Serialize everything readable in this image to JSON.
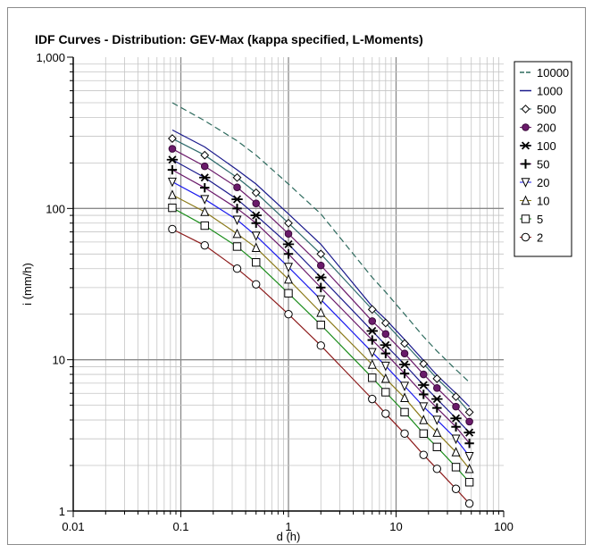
{
  "chart_data": {
    "type": "line",
    "title": "IDF Curves - Distribution: GEV-Max (kappa specified, L-Moments)",
    "xlabel": "d (h)",
    "ylabel": "i (mm/h)",
    "xscale": "log",
    "yscale": "log",
    "xlim": [
      0.01,
      100
    ],
    "ylim": [
      1,
      1000
    ],
    "x_tick_labels": [
      "0.01",
      "0.1",
      "1",
      "10",
      "100"
    ],
    "y_tick_labels": [
      "1",
      "10",
      "100",
      "1,000"
    ],
    "grid": true,
    "legend_position": "right",
    "x": [
      0.0833,
      0.1667,
      0.3333,
      0.5,
      1,
      2,
      6,
      8,
      12,
      18,
      24,
      36,
      48
    ],
    "series": [
      {
        "name": "10000",
        "color": "#2e6b5e",
        "marker": "none",
        "dashed": true,
        "values": [
          500,
          380,
          280,
          225,
          145,
          92,
          35,
          28,
          20,
          14.2,
          11.4,
          8.6,
          7.1
        ]
      },
      {
        "name": "1000",
        "color": "#1a1a8c",
        "marker": "none",
        "dashed": false,
        "values": [
          330,
          255,
          180,
          145,
          92,
          58,
          22.5,
          18.5,
          13.6,
          9.9,
          7.9,
          6.0,
          4.9
        ]
      },
      {
        "name": "500",
        "color": "#2e6b6b",
        "marker": "diamond",
        "dashed": false,
        "values": [
          290,
          225,
          160,
          127,
          80,
          50,
          21.5,
          17.5,
          12.8,
          9.4,
          7.5,
          5.7,
          4.5
        ]
      },
      {
        "name": "200",
        "color": "#6a1a6a",
        "marker": "dot",
        "dashed": false,
        "values": [
          248,
          190,
          138,
          108,
          68,
          42,
          18,
          14.8,
          11,
          8,
          6.5,
          4.9,
          3.9
        ]
      },
      {
        "name": "100",
        "color": "#1a1a8c",
        "marker": "asterisk",
        "dashed": false,
        "values": [
          210,
          160,
          115,
          90,
          58,
          35,
          15.5,
          12.5,
          9.3,
          6.8,
          5.5,
          4.1,
          3.3
        ]
      },
      {
        "name": "50",
        "color": "#6a1a6a",
        "marker": "plus",
        "dashed": false,
        "values": [
          180,
          137,
          100,
          80,
          50,
          30,
          13.5,
          11,
          8.1,
          5.9,
          4.8,
          3.6,
          2.8
        ]
      },
      {
        "name": "20",
        "color": "#1a1aee",
        "marker": "triangle-down",
        "dashed": false,
        "values": [
          150,
          115,
          84,
          66,
          41,
          25,
          11.2,
          9.1,
          6.7,
          4.9,
          4.0,
          3.0,
          2.3
        ]
      },
      {
        "name": "10",
        "color": "#8b7a1a",
        "marker": "triangle-up",
        "dashed": false,
        "values": [
          123,
          95,
          68,
          55,
          34,
          20.5,
          9.3,
          7.5,
          5.6,
          4.0,
          3.3,
          2.45,
          1.9
        ]
      },
      {
        "name": "5",
        "color": "#1a8c1a",
        "marker": "square",
        "dashed": false,
        "values": [
          101,
          77,
          56,
          44,
          27.5,
          17,
          7.6,
          6.1,
          4.5,
          3.25,
          2.65,
          1.95,
          1.55
        ]
      },
      {
        "name": "2",
        "color": "#8c1a1a",
        "marker": "circle",
        "dashed": false,
        "values": [
          73,
          57,
          40,
          31.5,
          20,
          12.4,
          5.5,
          4.4,
          3.25,
          2.35,
          1.9,
          1.4,
          1.12
        ]
      }
    ]
  }
}
